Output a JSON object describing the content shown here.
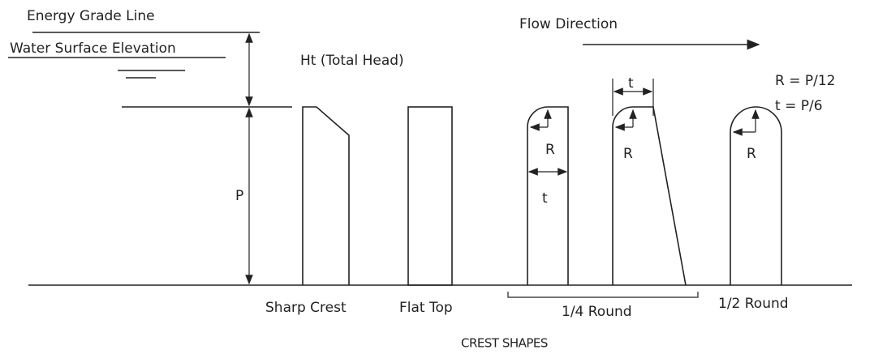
{
  "energy_grade_line": "Energy Grade Line",
  "water_surface_elevation": "Water Surface Elevation",
  "total_head": "Ht (Total Head)",
  "flow_direction": "Flow Direction",
  "formulas": [
    "R = P/12",
    "t = P/6"
  ],
  "height_label": "P",
  "crest_labels": [
    "Sharp Crest",
    "Flat Top",
    "1/4 Round",
    "1/2 Round"
  ],
  "dimension_labels": {
    "quarter_round_a": [
      "R",
      "t"
    ],
    "quarter_round_b": [
      "t",
      "R"
    ],
    "half_round": [
      "R"
    ]
  },
  "caption": "CREST SHAPES"
}
